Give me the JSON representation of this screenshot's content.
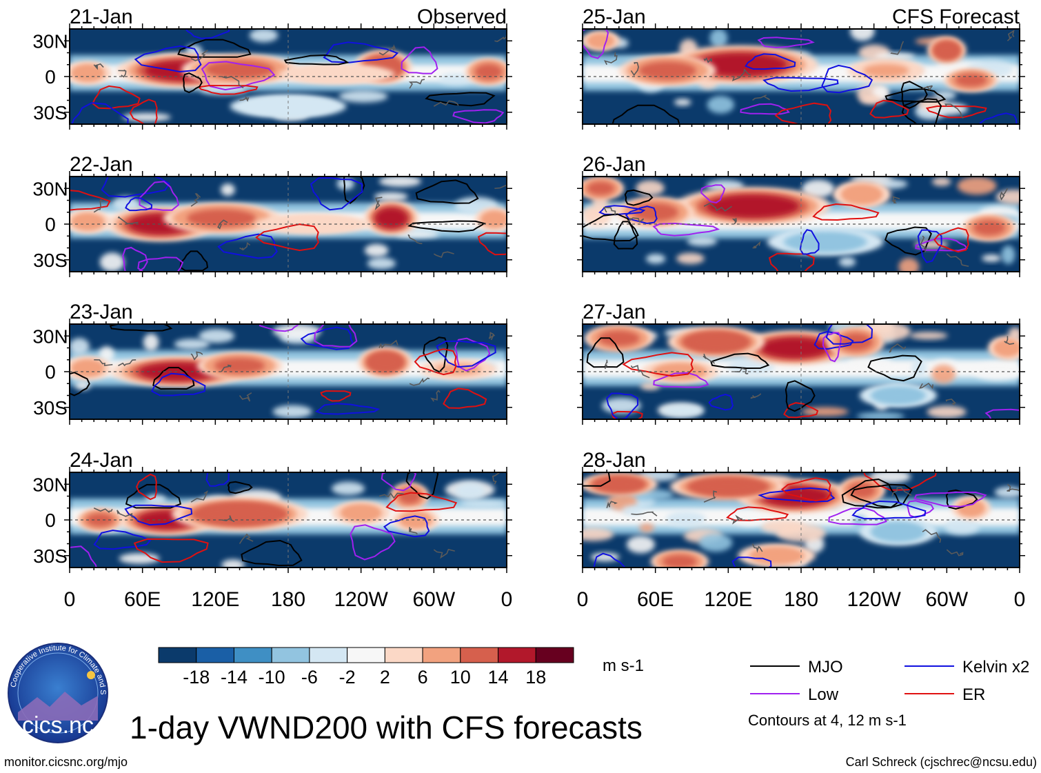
{
  "title": "1-day VWND200 with CFS forecasts",
  "source_url": "monitor.cicsnc.org/mjo",
  "credit": "Carl Schreck (cjschrec@ncsu.edu)",
  "logo": {
    "name": "cics.nc",
    "ring_text": "Cooperative Institute for Climate and Satellites"
  },
  "column_labels": {
    "observed": "Observed",
    "forecast": "CFS Forecast"
  },
  "legend": {
    "units": "m s-1",
    "contour_note": "Contours at 4, 12 m s-1",
    "lines": [
      {
        "label": "MJO",
        "color": "#000000"
      },
      {
        "label": "Kelvin x2",
        "color": "#1010e0"
      },
      {
        "label": "Low",
        "color": "#a020f0"
      },
      {
        "label": "ER",
        "color": "#e01010"
      }
    ]
  },
  "colorbar": {
    "colors": [
      "#0b3a6b",
      "#1a5fa6",
      "#3f8fc4",
      "#92c4e0",
      "#d4e7f3",
      "#f7f7f7",
      "#fbd8c6",
      "#f2a27f",
      "#d6604d",
      "#b2182b",
      "#67001f"
    ],
    "tick_labels": [
      "-18",
      "-14",
      "-10",
      "-6",
      "-2",
      "2",
      "6",
      "10",
      "14",
      "18"
    ]
  },
  "chart_data": {
    "type": "heatmap",
    "variable": "VWND200",
    "x_ticks": [
      "0",
      "60E",
      "120E",
      "180",
      "120W",
      "60W",
      "0"
    ],
    "y_ticks": [
      "30N",
      "0",
      "30S"
    ],
    "xlim": [
      0,
      360
    ],
    "ylim": [
      -40,
      40
    ],
    "panels": [
      {
        "date": "21-Jan",
        "column": "observed",
        "blobs": [
          {
            "lon": 95,
            "lat": 5,
            "v": 18,
            "w": 35,
            "h": 9
          },
          {
            "lon": 140,
            "lat": 6,
            "v": 14,
            "w": 30,
            "h": 8
          },
          {
            "lon": 258,
            "lat": 8,
            "v": 16,
            "w": 15,
            "h": 9
          },
          {
            "lon": 345,
            "lat": 4,
            "v": 12,
            "w": 12,
            "h": 7
          },
          {
            "lon": 15,
            "lat": 3,
            "v": 10,
            "w": 12,
            "h": 6
          },
          {
            "lon": 220,
            "lat": 2,
            "v": 4,
            "w": 30,
            "h": 5
          },
          {
            "lon": 180,
            "lat": -25,
            "v": -4,
            "w": 30,
            "h": 6
          }
        ]
      },
      {
        "date": "22-Jan",
        "column": "observed",
        "blobs": [
          {
            "lon": 75,
            "lat": 0,
            "v": 18,
            "w": 28,
            "h": 9
          },
          {
            "lon": 125,
            "lat": 5,
            "v": 14,
            "w": 30,
            "h": 8
          },
          {
            "lon": 265,
            "lat": 5,
            "v": 18,
            "w": 14,
            "h": 9
          },
          {
            "lon": 15,
            "lat": 2,
            "v": 10,
            "w": 12,
            "h": 6
          },
          {
            "lon": 350,
            "lat": 4,
            "v": 10,
            "w": 10,
            "h": 6
          },
          {
            "lon": 200,
            "lat": 0,
            "v": 4,
            "w": 30,
            "h": 5
          }
        ]
      },
      {
        "date": "23-Jan",
        "column": "observed",
        "blobs": [
          {
            "lon": 90,
            "lat": 0,
            "v": 18,
            "w": 35,
            "h": 8
          },
          {
            "lon": 140,
            "lat": 5,
            "v": 14,
            "w": 22,
            "h": 7
          },
          {
            "lon": 260,
            "lat": 8,
            "v": 16,
            "w": 14,
            "h": 8
          },
          {
            "lon": 15,
            "lat": 3,
            "v": 10,
            "w": 12,
            "h": 6
          },
          {
            "lon": 320,
            "lat": 2,
            "v": 6,
            "w": 20,
            "h": 5
          }
        ]
      },
      {
        "date": "24-Jan",
        "column": "observed",
        "blobs": [
          {
            "lon": 80,
            "lat": 0,
            "v": 18,
            "w": 25,
            "h": 8
          },
          {
            "lon": 140,
            "lat": 5,
            "v": 16,
            "w": 35,
            "h": 9
          },
          {
            "lon": 280,
            "lat": 20,
            "v": 14,
            "w": 10,
            "h": 7
          },
          {
            "lon": 240,
            "lat": 6,
            "v": 10,
            "w": 15,
            "h": 6
          },
          {
            "lon": 25,
            "lat": 0,
            "v": 12,
            "w": 12,
            "h": 6
          },
          {
            "lon": 285,
            "lat": 0,
            "v": 8,
            "w": 12,
            "h": 6
          }
        ]
      },
      {
        "date": "25-Jan",
        "column": "forecast",
        "blobs": [
          {
            "lon": 130,
            "lat": 10,
            "v": 18,
            "w": 40,
            "h": 10
          },
          {
            "lon": 70,
            "lat": 5,
            "v": 12,
            "w": 25,
            "h": 8
          },
          {
            "lon": 300,
            "lat": 22,
            "v": 16,
            "w": 10,
            "h": 7
          },
          {
            "lon": 320,
            "lat": -3,
            "v": 12,
            "w": 14,
            "h": 6
          },
          {
            "lon": 15,
            "lat": 30,
            "v": 8,
            "w": 10,
            "h": 5
          },
          {
            "lon": 250,
            "lat": 5,
            "v": 6,
            "w": 20,
            "h": 6
          }
        ]
      },
      {
        "date": "26-Jan",
        "column": "forecast",
        "blobs": [
          {
            "lon": 140,
            "lat": 15,
            "v": 18,
            "w": 40,
            "h": 10
          },
          {
            "lon": 60,
            "lat": 10,
            "v": 14,
            "w": 20,
            "h": 8
          },
          {
            "lon": 335,
            "lat": -3,
            "v": 14,
            "w": 14,
            "h": 7
          },
          {
            "lon": 15,
            "lat": 30,
            "v": 12,
            "w": 12,
            "h": 6
          },
          {
            "lon": 230,
            "lat": 25,
            "v": 8,
            "w": 15,
            "h": 7
          },
          {
            "lon": 200,
            "lat": -15,
            "v": -8,
            "w": 30,
            "h": 7
          }
        ]
      },
      {
        "date": "27-Jan",
        "column": "forecast",
        "blobs": [
          {
            "lon": 175,
            "lat": 20,
            "v": 18,
            "w": 30,
            "h": 9
          },
          {
            "lon": 110,
            "lat": 25,
            "v": 16,
            "w": 25,
            "h": 8
          },
          {
            "lon": 225,
            "lat": 25,
            "v": 14,
            "w": 15,
            "h": 8
          },
          {
            "lon": 30,
            "lat": 28,
            "v": 12,
            "w": 18,
            "h": 7
          },
          {
            "lon": 80,
            "lat": 0,
            "v": 8,
            "w": 20,
            "h": 6
          },
          {
            "lon": 350,
            "lat": 20,
            "v": 10,
            "w": 10,
            "h": 6
          },
          {
            "lon": 260,
            "lat": -20,
            "v": -10,
            "w": 20,
            "h": 6
          }
        ]
      },
      {
        "date": "28-Jan",
        "column": "forecast",
        "blobs": [
          {
            "lon": 175,
            "lat": 20,
            "v": 18,
            "w": 30,
            "h": 9
          },
          {
            "lon": 120,
            "lat": 28,
            "v": 16,
            "w": 30,
            "h": 7
          },
          {
            "lon": 30,
            "lat": 30,
            "v": 16,
            "w": 20,
            "h": 6
          },
          {
            "lon": 230,
            "lat": 25,
            "v": 14,
            "w": 12,
            "h": 7
          },
          {
            "lon": 80,
            "lat": -35,
            "v": 14,
            "w": 15,
            "h": 6
          },
          {
            "lon": 160,
            "lat": -30,
            "v": 10,
            "w": 20,
            "h": 6
          },
          {
            "lon": 320,
            "lat": 10,
            "v": 8,
            "w": 10,
            "h": 6
          },
          {
            "lon": 260,
            "lat": -10,
            "v": -10,
            "w": 20,
            "h": 7
          }
        ]
      }
    ]
  }
}
